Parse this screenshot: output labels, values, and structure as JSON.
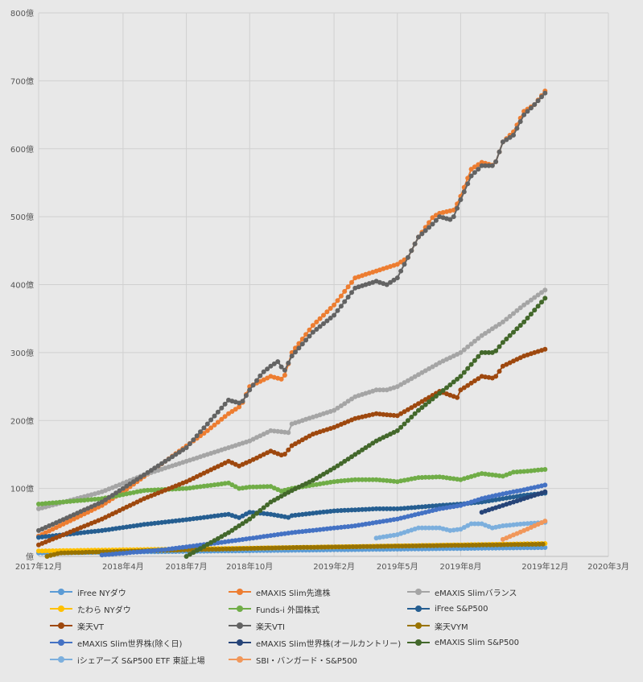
{
  "chart_data": {
    "type": "line",
    "title": "",
    "xlabel": "",
    "ylabel": "",
    "ylim": [
      0,
      800
    ],
    "y_unit": "億",
    "grid": true,
    "legend_position": "bottom",
    "y_ticks": [
      {
        "value": 0,
        "label": "億"
      },
      {
        "value": 100,
        "label": "100億"
      },
      {
        "value": 200,
        "label": "200億"
      },
      {
        "value": 300,
        "label": "300億"
      },
      {
        "value": 400,
        "label": "400億"
      },
      {
        "value": 500,
        "label": "500億"
      },
      {
        "value": 600,
        "label": "600億"
      },
      {
        "value": 700,
        "label": "700億"
      },
      {
        "value": 800,
        "label": "800億"
      }
    ],
    "x_ticks": [
      {
        "value": 0,
        "label": "2017年12月"
      },
      {
        "value": 4,
        "label": "2018年4月"
      },
      {
        "value": 7,
        "label": "2018年7月"
      },
      {
        "value": 10,
        "label": "2018年10月"
      },
      {
        "value": 14,
        "label": "2019年2月"
      },
      {
        "value": 17,
        "label": "2019年5月"
      },
      {
        "value": 20,
        "label": "2019年8月"
      },
      {
        "value": 24,
        "label": "2019年12月"
      },
      {
        "value": 27,
        "label": "2020年3月"
      }
    ],
    "xlim": [
      0,
      27
    ],
    "series": [
      {
        "name": "iFree NYダウ",
        "color": "#5b9bd5",
        "start": 0,
        "end": 24,
        "anchors": [
          [
            0,
            5
          ],
          [
            12,
            9
          ],
          [
            24,
            13
          ]
        ]
      },
      {
        "name": "eMAXIS Slim先進株",
        "color": "#ed7d31",
        "start": 0,
        "end": 24,
        "anchors": [
          [
            0,
            30
          ],
          [
            3,
            75
          ],
          [
            4,
            95
          ],
          [
            6,
            140
          ],
          [
            8,
            185
          ],
          [
            9,
            210
          ],
          [
            9.6,
            222
          ],
          [
            10,
            250
          ],
          [
            11,
            265
          ],
          [
            11.6,
            260
          ],
          [
            12,
            300
          ],
          [
            13,
            340
          ],
          [
            14,
            370
          ],
          [
            15,
            410
          ],
          [
            16,
            420
          ],
          [
            17,
            430
          ],
          [
            17.5,
            440
          ],
          [
            18,
            470
          ],
          [
            18.7,
            500
          ],
          [
            19,
            505
          ],
          [
            19.7,
            510
          ],
          [
            20,
            530
          ],
          [
            20.5,
            570
          ],
          [
            21,
            580
          ],
          [
            21.6,
            575
          ],
          [
            22,
            610
          ],
          [
            22.5,
            625
          ],
          [
            23,
            655
          ],
          [
            23.5,
            665
          ],
          [
            24,
            685
          ]
        ]
      },
      {
        "name": "eMAXIS Slimバランス",
        "color": "#a5a5a5",
        "start": 0,
        "end": 24,
        "anchors": [
          [
            0,
            70
          ],
          [
            3,
            95
          ],
          [
            5,
            120
          ],
          [
            7,
            140
          ],
          [
            9,
            160
          ],
          [
            10,
            170
          ],
          [
            11,
            185
          ],
          [
            11.9,
            182
          ],
          [
            12,
            195
          ],
          [
            14,
            215
          ],
          [
            15,
            235
          ],
          [
            16,
            245
          ],
          [
            16.5,
            245
          ],
          [
            17,
            250
          ],
          [
            19,
            285
          ],
          [
            20,
            300
          ],
          [
            21,
            325
          ],
          [
            22,
            345
          ],
          [
            23,
            370
          ],
          [
            24,
            392
          ]
        ]
      },
      {
        "name": "たわら NYダウ",
        "color": "#ffc000",
        "start": 0,
        "end": 24,
        "anchors": [
          [
            0,
            8
          ],
          [
            12,
            13
          ],
          [
            24,
            19
          ]
        ]
      },
      {
        "name": "Funds-i 外国株式",
        "color": "#70ad47",
        "start": 0,
        "end": 24,
        "anchors": [
          [
            0,
            77
          ],
          [
            3,
            85
          ],
          [
            5,
            97
          ],
          [
            7,
            100
          ],
          [
            9,
            108
          ],
          [
            9.5,
            100
          ],
          [
            10,
            102
          ],
          [
            11,
            103
          ],
          [
            11.5,
            96
          ],
          [
            12,
            100
          ],
          [
            14,
            110
          ],
          [
            15,
            113
          ],
          [
            16,
            113
          ],
          [
            17,
            110
          ],
          [
            18,
            116
          ],
          [
            19,
            117
          ],
          [
            20,
            113
          ],
          [
            21,
            122
          ],
          [
            22,
            118
          ],
          [
            22.5,
            124
          ],
          [
            23,
            125
          ],
          [
            24,
            128
          ]
        ]
      },
      {
        "name": "iFree S&P500",
        "color": "#255e91",
        "start": 0,
        "end": 24,
        "anchors": [
          [
            0,
            28
          ],
          [
            3,
            38
          ],
          [
            5,
            47
          ],
          [
            7,
            54
          ],
          [
            9,
            62
          ],
          [
            9.5,
            57
          ],
          [
            10,
            65
          ],
          [
            11,
            62
          ],
          [
            11.9,
            57
          ],
          [
            12,
            60
          ],
          [
            14,
            67
          ],
          [
            16,
            70
          ],
          [
            17,
            70
          ],
          [
            19,
            75
          ],
          [
            20,
            77
          ],
          [
            21,
            80
          ],
          [
            22,
            85
          ],
          [
            23,
            90
          ],
          [
            24,
            93
          ]
        ]
      },
      {
        "name": "楽天VT",
        "color": "#9e480e",
        "start": 0,
        "end": 24,
        "anchors": [
          [
            0,
            17
          ],
          [
            3,
            55
          ],
          [
            5,
            85
          ],
          [
            7,
            110
          ],
          [
            9,
            140
          ],
          [
            9.5,
            133
          ],
          [
            10,
            140
          ],
          [
            11,
            155
          ],
          [
            11.6,
            148
          ],
          [
            12,
            163
          ],
          [
            13,
            180
          ],
          [
            14,
            190
          ],
          [
            15,
            203
          ],
          [
            16,
            210
          ],
          [
            17,
            207
          ],
          [
            18,
            225
          ],
          [
            19,
            243
          ],
          [
            19.9,
            233
          ],
          [
            20,
            245
          ],
          [
            21,
            265
          ],
          [
            21.6,
            262
          ],
          [
            22,
            280
          ],
          [
            23,
            295
          ],
          [
            24,
            305
          ]
        ]
      },
      {
        "name": "楽天VTI",
        "color": "#636363",
        "start": 0,
        "end": 24,
        "anchors": [
          [
            0,
            38
          ],
          [
            3,
            80
          ],
          [
            4,
            100
          ],
          [
            5,
            120
          ],
          [
            7,
            160
          ],
          [
            9,
            230
          ],
          [
            9.6,
            225
          ],
          [
            10,
            245
          ],
          [
            10.6,
            270
          ],
          [
            11,
            280
          ],
          [
            11.4,
            288
          ],
          [
            11.6,
            270
          ],
          [
            12,
            295
          ],
          [
            13,
            330
          ],
          [
            14,
            355
          ],
          [
            15,
            395
          ],
          [
            16,
            405
          ],
          [
            16.5,
            400
          ],
          [
            17,
            410
          ],
          [
            17.5,
            440
          ],
          [
            18,
            470
          ],
          [
            18.7,
            490
          ],
          [
            19,
            500
          ],
          [
            19.6,
            495
          ],
          [
            20,
            525
          ],
          [
            20.5,
            560
          ],
          [
            21,
            575
          ],
          [
            21.6,
            575
          ],
          [
            22,
            610
          ],
          [
            22.5,
            620
          ],
          [
            23,
            650
          ],
          [
            23.5,
            665
          ],
          [
            24,
            682
          ]
        ]
      },
      {
        "name": "楽天VYM",
        "color": "#997300",
        "start": 0.4,
        "end": 24,
        "anchors": [
          [
            0.4,
            0
          ],
          [
            1,
            5
          ],
          [
            6,
            9
          ],
          [
            12,
            13
          ],
          [
            24,
            18
          ]
        ]
      },
      {
        "name": "eMAXIS Slim世界株(除く日)",
        "color": "#4472c4",
        "start": 3,
        "end": 24,
        "anchors": [
          [
            3,
            2
          ],
          [
            6,
            10
          ],
          [
            9,
            22
          ],
          [
            12,
            35
          ],
          [
            15,
            45
          ],
          [
            17,
            55
          ],
          [
            19,
            70
          ],
          [
            20,
            75
          ],
          [
            21,
            85
          ],
          [
            22,
            92
          ],
          [
            23,
            98
          ],
          [
            24,
            105
          ]
        ]
      },
      {
        "name": "eMAXIS Slim世界株(オールカントリー)",
        "color": "#264478",
        "start": 21,
        "end": 24,
        "anchors": [
          [
            21,
            65
          ],
          [
            22,
            75
          ],
          [
            23,
            85
          ],
          [
            24,
            95
          ]
        ]
      },
      {
        "name": "eMAXIS Slim S&P500",
        "color": "#43682b",
        "start": 7,
        "end": 24,
        "anchors": [
          [
            7,
            0
          ],
          [
            9,
            35
          ],
          [
            10,
            55
          ],
          [
            11,
            80
          ],
          [
            12,
            97
          ],
          [
            13,
            112
          ],
          [
            14,
            130
          ],
          [
            15,
            150
          ],
          [
            16,
            170
          ],
          [
            17,
            185
          ],
          [
            18,
            215
          ],
          [
            19,
            240
          ],
          [
            20,
            265
          ],
          [
            21,
            300
          ],
          [
            21.6,
            300
          ],
          [
            22,
            315
          ],
          [
            23,
            345
          ],
          [
            24,
            380
          ]
        ]
      },
      {
        "name": "iシェアーズ S&P500 ETF 東証上場",
        "color": "#7cafdd",
        "start": 16,
        "end": 24,
        "anchors": [
          [
            16,
            27
          ],
          [
            17,
            32
          ],
          [
            18,
            42
          ],
          [
            19,
            42
          ],
          [
            19.5,
            38
          ],
          [
            20,
            40
          ],
          [
            20.5,
            48
          ],
          [
            21,
            48
          ],
          [
            21.5,
            42
          ],
          [
            22,
            45
          ],
          [
            23,
            48
          ],
          [
            24,
            50
          ]
        ]
      },
      {
        "name": "SBI・バンガード・S&P500",
        "color": "#f1975a",
        "start": 22,
        "end": 24,
        "anchors": [
          [
            22,
            25
          ],
          [
            23,
            38
          ],
          [
            24,
            52
          ]
        ]
      }
    ]
  }
}
